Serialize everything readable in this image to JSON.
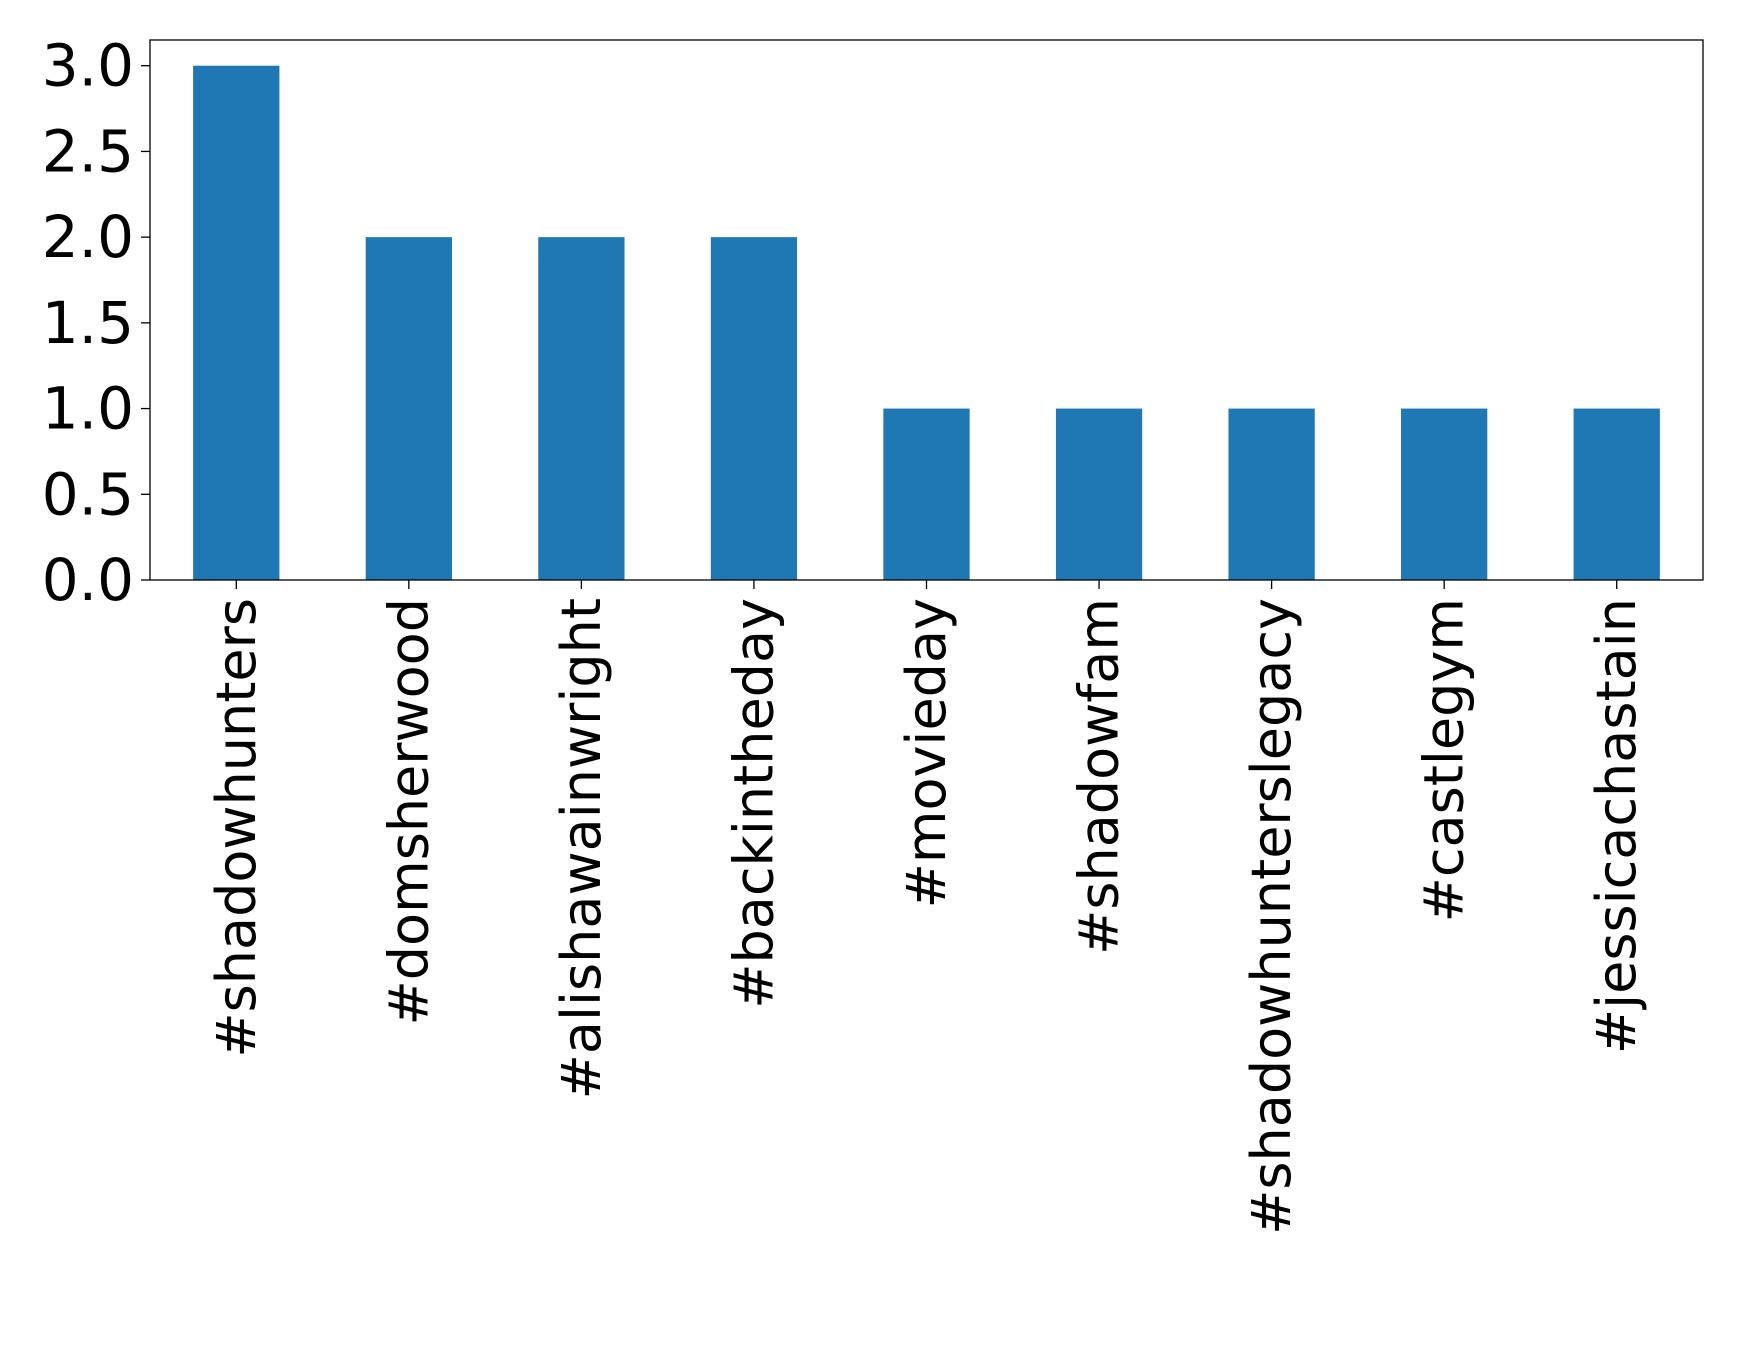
{
  "chart_data": {
    "type": "bar",
    "title": "",
    "xlabel": "",
    "ylabel": "",
    "categories": [
      "#shadowhunters",
      "#domsherwood",
      "#alishawainwright",
      "#backintheday",
      "#movieday",
      "#shadowfam",
      "#shadowhunterslegacy",
      "#castlegym",
      "#jessicachastain"
    ],
    "values": [
      3,
      2,
      2,
      2,
      1,
      1,
      1,
      1,
      1
    ],
    "ylim": [
      0,
      3.15
    ],
    "yticks": [
      0.0,
      0.5,
      1.0,
      1.5,
      2.0,
      2.5,
      3.0
    ],
    "ytick_labels": [
      "0.0",
      "0.5",
      "1.0",
      "1.5",
      "2.0",
      "2.5",
      "3.0"
    ],
    "bar_color": "#1f77b4",
    "x_tick_rotation": "vertical",
    "grid": false,
    "legend": "none"
  }
}
